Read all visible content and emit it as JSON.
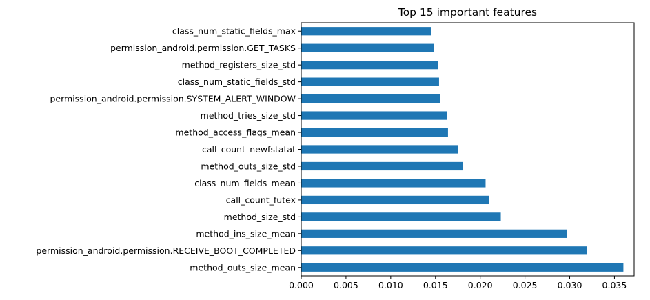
{
  "chart_data": {
    "type": "bar",
    "orientation": "horizontal",
    "title": "Top 15 important features",
    "xlabel": "",
    "ylabel": "",
    "xlim": [
      0,
      0.0372
    ],
    "grid": false,
    "bar_color": "#1f77b4",
    "categories": [
      "method_outs_size_mean",
      "permission_android.permission.RECEIVE_BOOT_COMPLETED",
      "method_ins_size_mean",
      "method_size_std",
      "call_count_futex",
      "class_num_fields_mean",
      "method_outs_size_std",
      "call_count_newfstatat",
      "method_access_flags_mean",
      "method_tries_size_std",
      "permission_android.permission.SYSTEM_ALERT_WINDOW",
      "class_num_static_fields_std",
      "method_registers_size_std",
      "permission_android.permission.GET_TASKS",
      "class_num_static_fields_max"
    ],
    "values": [
      0.036,
      0.0319,
      0.0297,
      0.0223,
      0.021,
      0.0206,
      0.0181,
      0.0175,
      0.0164,
      0.0163,
      0.0155,
      0.0154,
      0.0153,
      0.0148,
      0.0145
    ],
    "x_ticks": [
      0.0,
      0.005,
      0.01,
      0.015,
      0.02,
      0.025,
      0.03,
      0.035
    ],
    "x_tick_labels": [
      "0.000",
      "0.005",
      "0.010",
      "0.015",
      "0.020",
      "0.025",
      "0.030",
      "0.035"
    ]
  }
}
